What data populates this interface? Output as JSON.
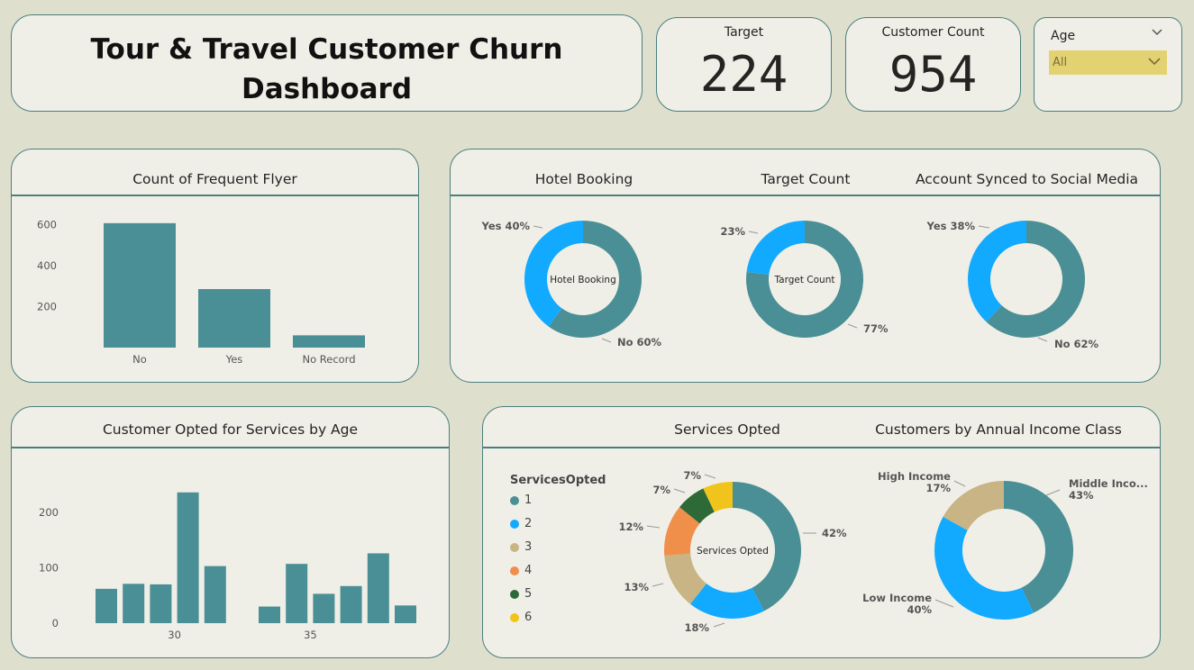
{
  "header": {
    "title": "Tour & Travel Customer Churn Dashboard",
    "kpi_target": {
      "label": "Target",
      "value": "224"
    },
    "kpi_customers": {
      "label": "Customer Count",
      "value": "954"
    },
    "age_slicer": {
      "label": "Age",
      "selected": "All"
    }
  },
  "colors": {
    "teal": "#4a8f96",
    "blue": "#12aaff",
    "tan": "#c8b485",
    "orange": "#f08f4a",
    "dark_green": "#2e6a37",
    "yellow": "#f0c41a"
  },
  "panels": {
    "frequent_flyer": "Count of Frequent Flyer",
    "hotel_booking": "Hotel Booking",
    "target_count": "Target Count",
    "social_media": "Account Synced to Social Media",
    "services_by_age": "Customer Opted for Services by Age",
    "services_opted": "Services Opted",
    "income_class": "Customers by Annual Income Class"
  },
  "chart_data": [
    {
      "id": "frequent_flyer",
      "type": "bar",
      "title": "Count of Frequent Flyer",
      "categories": [
        "No",
        "Yes",
        "No Record"
      ],
      "values": [
        608,
        286,
        60
      ],
      "yticks": [
        "200",
        "400",
        "600"
      ],
      "ylim": [
        0,
        660
      ]
    },
    {
      "id": "hotel_booking",
      "type": "pie",
      "title": "Hotel Booking",
      "center_label": "Hotel Booking",
      "slices": [
        {
          "label": "Yes 40%",
          "value": 40,
          "color": "#12aaff"
        },
        {
          "label": "No 60%",
          "value": 60,
          "color": "#4a8f96"
        }
      ]
    },
    {
      "id": "target_count",
      "type": "pie",
      "title": "Target Count",
      "center_label": "Target Count",
      "slices": [
        {
          "label": "23%",
          "value": 23,
          "color": "#12aaff"
        },
        {
          "label": "77%",
          "value": 77,
          "color": "#4a8f96"
        }
      ]
    },
    {
      "id": "social_media",
      "type": "pie",
      "title": "Account Synced to Social Media",
      "center_label": "",
      "slices": [
        {
          "label": "Yes 38%",
          "value": 38,
          "color": "#12aaff"
        },
        {
          "label": "No 62%",
          "value": 62,
          "color": "#4a8f96"
        }
      ]
    },
    {
      "id": "services_by_age",
      "type": "bar",
      "title": "Customer Opted for Services by Age",
      "categories": [
        "27",
        "28",
        "29",
        "30",
        "31",
        "33",
        "34",
        "35",
        "36",
        "37",
        "38"
      ],
      "values": [
        62,
        71,
        70,
        236,
        103,
        30,
        107,
        53,
        67,
        126,
        32
      ],
      "xticks": [
        "30",
        "35"
      ],
      "yticks": [
        "0",
        "100",
        "200"
      ],
      "ylim": [
        0,
        260
      ]
    },
    {
      "id": "services_opted",
      "type": "pie",
      "title": "Services Opted",
      "center_label": "Services Opted",
      "legend_title": "ServicesOpted",
      "slices": [
        {
          "label": "42%",
          "legend": "1",
          "value": 42,
          "color": "#4a8f96"
        },
        {
          "label": "18%",
          "legend": "2",
          "value": 18,
          "color": "#12aaff"
        },
        {
          "label": "13%",
          "legend": "3",
          "value": 13,
          "color": "#c8b485"
        },
        {
          "label": "12%",
          "legend": "4",
          "value": 12,
          "color": "#f08f4a"
        },
        {
          "label": "7%",
          "legend": "5",
          "value": 7,
          "color": "#2e6a37"
        },
        {
          "label": "7%",
          "legend": "6",
          "value": 7,
          "color": "#f0c41a"
        }
      ]
    },
    {
      "id": "income_class",
      "type": "pie",
      "title": "Customers by Annual Income Class",
      "center_label": "",
      "slices": [
        {
          "label": "Middle Inco...",
          "pct": "43%",
          "value": 43,
          "color": "#4a8f96"
        },
        {
          "label": "Low Income",
          "pct": "40%",
          "value": 40,
          "color": "#12aaff"
        },
        {
          "label": "High Income",
          "pct": "17%",
          "value": 17,
          "color": "#c8b485"
        }
      ]
    }
  ]
}
